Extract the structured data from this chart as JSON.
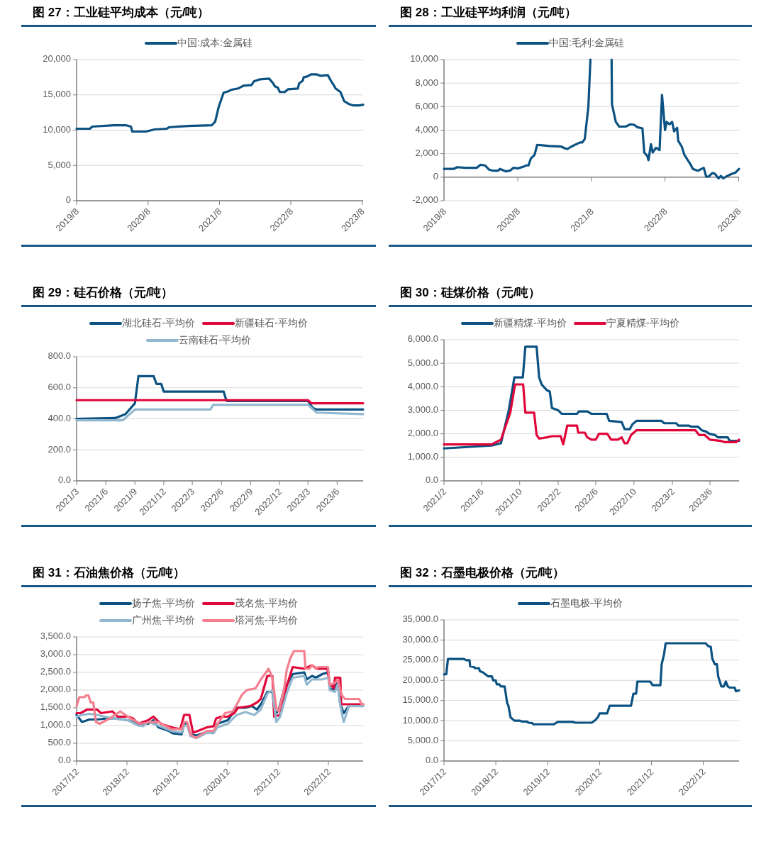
{
  "chart_data": [
    {
      "type": "line",
      "title": "图 27：工业硅平均成本（元/吨）",
      "legend": "top",
      "grid": "y",
      "xlim": [
        "2019-08-01",
        "2023-08-06"
      ],
      "xticks": [
        {
          "value": "2019-08",
          "label": "2019/8"
        },
        {
          "value": "2020-08",
          "label": "2020/8"
        },
        {
          "value": "2021-08",
          "label": "2021/8"
        },
        {
          "value": "2022-08",
          "label": "2022/8"
        },
        {
          "value": "2023-08",
          "label": "2023/8"
        }
      ],
      "ylim": [
        0,
        20000
      ],
      "yticks": [
        {
          "value": 0,
          "label": "0"
        },
        {
          "value": 5000,
          "label": "5,000"
        },
        {
          "value": 10000,
          "label": "10,000"
        },
        {
          "value": 15000,
          "label": "15,000"
        },
        {
          "value": 20000,
          "label": "20,000"
        }
      ],
      "series": [
        {
          "name": "中国:成本:金属硅",
          "color": "#0b5282",
          "x": [
            "2019-08-01",
            "2019-10-08",
            "2019-10-20",
            "2020-02-08",
            "2020-04-08",
            "2020-05-05",
            "2020-05-12",
            "2020-07-20",
            "2020-09-03",
            "2020-11-03",
            "2020-11-15",
            "2021-02-22",
            "2021-06-22",
            "2021-07-10",
            "2021-07-28",
            "2021-08-22",
            "2021-09-15",
            "2021-09-28",
            "2021-11-04",
            "2021-12-01",
            "2022-01-12",
            "2022-01-24",
            "2022-02-24",
            "2022-04-12",
            "2022-05-01",
            "2022-05-12",
            "2022-05-27",
            "2022-06-06",
            "2022-07-01",
            "2022-07-18",
            "2022-09-06",
            "2022-09-12",
            "2022-10-01",
            "2022-10-06",
            "2022-10-24",
            "2022-11-12",
            "2022-12-12",
            "2023-01-01",
            "2023-02-06",
            "2023-02-24",
            "2023-03-06",
            "2023-03-18",
            "2023-04-12",
            "2023-05-01",
            "2023-05-25",
            "2023-06-18",
            "2023-07-18",
            "2023-08-06"
          ],
          "values": [
            10200,
            10200,
            10500,
            10700,
            10700,
            10500,
            9800,
            9800,
            10100,
            10200,
            10400,
            10600,
            10700,
            11200,
            13300,
            15300,
            15500,
            15700,
            15900,
            16300,
            16400,
            16900,
            17200,
            17300,
            16700,
            16200,
            16000,
            15400,
            15400,
            15800,
            15900,
            16600,
            17000,
            17500,
            17600,
            17900,
            17900,
            17700,
            17800,
            16900,
            16500,
            15900,
            15400,
            14100,
            13700,
            13500,
            13500,
            13600
          ]
        }
      ]
    },
    {
      "type": "line",
      "title": "图 28：工业硅平均利润（元/吨）",
      "legend": "top",
      "grid": "y",
      "xlim": [
        "2019-08-01",
        "2023-08-03"
      ],
      "xticks": [
        {
          "value": "2019-08",
          "label": "2019/8"
        },
        {
          "value": "2020-08",
          "label": "2020/8"
        },
        {
          "value": "2021-08",
          "label": "2021/8"
        },
        {
          "value": "2022-08",
          "label": "2022/8"
        },
        {
          "value": "2023-08",
          "label": "2023/8"
        }
      ],
      "ylim": [
        -2000,
        10000
      ],
      "yticks": [
        {
          "value": -2000,
          "label": "-2,000"
        },
        {
          "value": 0,
          "label": "0"
        },
        {
          "value": 2000,
          "label": "2,000"
        },
        {
          "value": 4000,
          "label": "4,000"
        },
        {
          "value": 6000,
          "label": "6,000"
        },
        {
          "value": 8000,
          "label": "8,000"
        },
        {
          "value": 10000,
          "label": "10,000"
        }
      ],
      "series": [
        {
          "name": "中国:毛利:金属硅",
          "color": "#0b5282",
          "x": [
            "2019-08-01",
            "2019-09-17",
            "2019-10-05",
            "2019-11-17",
            "2020-01-11",
            "2020-01-28",
            "2020-02-21",
            "2020-03-11",
            "2020-03-30",
            "2020-04-26",
            "2020-05-05",
            "2020-06-01",
            "2020-06-23",
            "2020-07-11",
            "2020-08-01",
            "2020-08-30",
            "2020-09-12",
            "2020-09-23",
            "2020-10-05",
            "2020-10-23",
            "2020-11-05",
            "2021-01-05",
            "2021-03-05",
            "2021-03-23",
            "2021-04-05",
            "2021-04-23",
            "2021-06-05",
            "2021-06-17",
            "2021-06-29",
            "2021-07-17",
            "2021-07-27",
            null,
            "2021-11-09",
            "2021-11-11",
            "2021-11-30",
            "2021-12-17",
            "2022-01-17",
            "2022-02-11",
            "2022-03-01",
            "2022-03-17",
            "2022-04-11",
            "2022-04-20",
            "2022-05-05",
            "2022-05-11",
            "2022-05-23",
            "2022-06-01",
            "2022-06-17",
            "2022-07-05",
            "2022-07-17",
            "2022-08-01",
            "2022-08-09",
            "2022-08-23",
            "2022-09-05",
            "2022-09-15",
            "2022-09-30",
            "2022-10-05",
            "2022-10-23",
            "2022-11-05",
            "2022-12-05",
            "2022-12-17",
            "2023-01-11",
            "2023-02-09",
            "2023-02-21",
            "2023-03-05",
            "2023-03-23",
            "2023-04-05",
            "2023-04-23",
            "2023-05-05",
            "2023-05-17",
            "2023-06-05",
            "2023-06-23",
            "2023-07-17",
            "2023-08-03"
          ],
          "values": [
            700,
            700,
            850,
            800,
            800,
            1050,
            1000,
            650,
            550,
            550,
            700,
            500,
            550,
            800,
            750,
            900,
            1000,
            1000,
            1600,
            1900,
            2750,
            2650,
            2600,
            2450,
            2400,
            2600,
            2950,
            2950,
            3250,
            6000,
            10000,
            null,
            10000,
            6200,
            4700,
            4300,
            4300,
            4500,
            4450,
            4250,
            4150,
            2100,
            1800,
            1450,
            2800,
            2100,
            2500,
            2300,
            7000,
            4000,
            4700,
            4500,
            4700,
            3900,
            4200,
            3100,
            2600,
            1900,
            1100,
            700,
            550,
            800,
            50,
            50,
            350,
            300,
            -100,
            100,
            -100,
            100,
            250,
            400,
            700
          ]
        }
      ]
    },
    {
      "type": "line",
      "title": "图 29：硅石价格（元/吨）",
      "legend": "top",
      "grid": "y",
      "xlim": [
        "2021-03-01",
        "2023-08-22"
      ],
      "xticks": [
        {
          "value": "2021-03",
          "label": "2021/3"
        },
        {
          "value": "2021-06",
          "label": "2021/6"
        },
        {
          "value": "2021-09",
          "label": "2021/9"
        },
        {
          "value": "2021-12",
          "label": "2021/12"
        },
        {
          "value": "2022-03",
          "label": "2022/3"
        },
        {
          "value": "2022-06",
          "label": "2022/6"
        },
        {
          "value": "2022-09",
          "label": "2022/9"
        },
        {
          "value": "2022-12",
          "label": "2022/12"
        },
        {
          "value": "2023-03",
          "label": "2023/3"
        },
        {
          "value": "2023-06",
          "label": "2023/6"
        }
      ],
      "ylim": [
        0,
        800
      ],
      "yticks": [
        {
          "value": 0,
          "label": "0.0"
        },
        {
          "value": 200,
          "label": "200.0"
        },
        {
          "value": 400,
          "label": "400.0"
        },
        {
          "value": 600,
          "label": "600.0"
        },
        {
          "value": 800,
          "label": "800.0"
        }
      ],
      "series": [
        {
          "name": "湖北硅石-平均价",
          "color": "#0b5282",
          "x": [
            "2021-03-01",
            "2021-07-01",
            "2021-08-02",
            "2021-09-01",
            "2021-09-12",
            "2021-10-30",
            "2021-11-08",
            "2021-11-23",
            "2021-12-01",
            "2022-06-08",
            "2022-06-17",
            "2023-03-01",
            "2023-03-16",
            "2023-03-28",
            "2023-08-22"
          ],
          "values": [
            400,
            405,
            430,
            500,
            675,
            675,
            625,
            625,
            575,
            575,
            515,
            515,
            470,
            460,
            460
          ]
        },
        {
          "name": "新疆硅石-平均价",
          "color": "#e0063a",
          "x": [
            "2021-03-01",
            "2023-03-01",
            "2023-03-12",
            "2023-08-22"
          ],
          "values": [
            520,
            520,
            500,
            500
          ]
        },
        {
          "name": "云南硅石-平均价",
          "color": "#92b8cf",
          "x": [
            "2021-03-01",
            "2021-07-24",
            "2021-09-01",
            "2022-04-27",
            "2022-05-06",
            "2023-03-01",
            "2023-03-28",
            "2023-08-22"
          ],
          "values": [
            390,
            390,
            460,
            460,
            490,
            490,
            440,
            430
          ]
        }
      ]
    },
    {
      "type": "line",
      "title": "图 30：硅煤价格（元/吨）",
      "legend": "top",
      "grid": "y",
      "xlim": [
        "2021-02-01",
        "2023-09-02"
      ],
      "xticks": [
        {
          "value": "2021-02",
          "label": "2021/2"
        },
        {
          "value": "2021-06",
          "label": "2021/6"
        },
        {
          "value": "2021-10",
          "label": "2021/10"
        },
        {
          "value": "2022-02",
          "label": "2022/2"
        },
        {
          "value": "2022-06",
          "label": "2022/6"
        },
        {
          "value": "2022-10",
          "label": "2022/10"
        },
        {
          "value": "2023-02",
          "label": "2023/2"
        },
        {
          "value": "2023-06",
          "label": "2023/6"
        }
      ],
      "ylim": [
        0,
        6000
      ],
      "yticks": [
        {
          "value": 0,
          "label": "0.0"
        },
        {
          "value": 1000,
          "label": "1,000.0"
        },
        {
          "value": 2000,
          "label": "2,000.0"
        },
        {
          "value": 3000,
          "label": "3,000.0"
        },
        {
          "value": 4000,
          "label": "4,000.0"
        },
        {
          "value": 5000,
          "label": "5,000.0"
        },
        {
          "value": 6000,
          "label": "6,000.0"
        }
      ],
      "series": [
        {
          "name": "新疆精煤-平均价",
          "color": "#0b5282",
          "x": [
            "2021-02-01",
            "2021-07-03",
            "2021-08-02",
            "2021-08-27",
            "2021-09-14",
            "2021-10-11",
            "2021-10-19",
            "2021-11-24",
            "2021-12-02",
            "2021-12-10",
            "2021-12-27",
            "2022-01-05",
            "2022-01-12",
            "2022-02-01",
            "2022-02-12",
            "2022-04-02",
            "2022-04-08",
            "2022-05-05",
            "2022-05-18",
            "2022-07-06",
            "2022-07-14",
            "2022-08-23",
            "2022-09-01",
            "2022-09-18",
            "2022-09-26",
            "2022-10-09",
            "2022-12-28",
            "2023-01-06",
            "2023-02-13",
            "2023-02-20",
            "2023-03-25",
            "2023-04-03",
            "2023-04-24",
            "2023-05-06",
            "2023-05-19",
            "2023-05-30",
            "2023-06-17",
            "2023-06-26",
            "2023-07-28",
            "2023-08-03",
            "2023-09-02"
          ],
          "values": [
            1380,
            1500,
            1600,
            3000,
            4400,
            4400,
            5700,
            5700,
            4400,
            4100,
            3850,
            3800,
            3100,
            3000,
            2850,
            2850,
            2950,
            2950,
            2850,
            2850,
            2550,
            2500,
            2200,
            2200,
            2400,
            2550,
            2550,
            2450,
            2450,
            2350,
            2350,
            2300,
            2300,
            2150,
            2100,
            2000,
            1950,
            1850,
            1850,
            1700,
            1700
          ]
        },
        {
          "name": "宁夏精煤-平均价",
          "color": "#e0063a",
          "x": [
            "2021-02-01",
            "2021-07-03",
            "2021-08-02",
            "2021-09-01",
            "2021-09-16",
            "2021-10-12",
            "2021-10-19",
            "2021-11-16",
            "2021-11-24",
            "2021-12-02",
            "2021-12-27",
            "2022-01-12",
            "2022-02-09",
            "2022-02-17",
            "2022-03-02",
            "2022-04-02",
            "2022-04-06",
            "2022-04-27",
            "2022-05-05",
            "2022-05-18",
            "2022-06-01",
            "2022-06-11",
            "2022-07-08",
            "2022-07-20",
            "2022-08-11",
            "2022-08-23",
            "2022-09-01",
            "2022-09-10",
            "2022-09-22",
            "2022-10-09",
            "2023-04-16",
            "2023-04-27",
            "2023-05-15",
            "2023-06-01",
            "2023-07-05",
            "2023-07-17",
            "2023-08-24",
            "2023-09-02"
          ],
          "values": [
            1550,
            1550,
            1750,
            2900,
            4100,
            4100,
            2900,
            2900,
            1950,
            1800,
            1850,
            1900,
            1900,
            1550,
            2350,
            2350,
            2050,
            2050,
            1850,
            1750,
            1750,
            2000,
            2000,
            1750,
            1750,
            1850,
            1600,
            1600,
            1950,
            2150,
            2150,
            1950,
            1950,
            1750,
            1700,
            1650,
            1650,
            1750
          ]
        }
      ]
    },
    {
      "type": "line",
      "title": "图 31：石油焦价格（元/吨）",
      "legend": "top",
      "grid": "y",
      "xlim": [
        "2017-12-01",
        "2023-08-10"
      ],
      "xticks": [
        {
          "value": "2017-12",
          "label": "2017/12"
        },
        {
          "value": "2018-12",
          "label": "2018/12"
        },
        {
          "value": "2019-12",
          "label": "2019/12"
        },
        {
          "value": "2020-12",
          "label": "2020/12"
        },
        {
          "value": "2021-12",
          "label": "2021/12"
        },
        {
          "value": "2022-12",
          "label": "2022/12"
        }
      ],
      "ylim": [
        0,
        3500
      ],
      "yticks": [
        {
          "value": 0,
          "label": "0.0"
        },
        {
          "value": 500,
          "label": "500.0"
        },
        {
          "value": 1000,
          "label": "1,000.0"
        },
        {
          "value": 1500,
          "label": "1,500.0"
        },
        {
          "value": 2000,
          "label": "2,000.0"
        },
        {
          "value": 2500,
          "label": "2,500.0"
        },
        {
          "value": 3000,
          "label": "3,000.0"
        },
        {
          "value": 3500,
          "label": "3,500.0"
        }
      ],
      "series": [
        {
          "name": "扬子焦-平均价",
          "color": "#0b5282",
          "x": [
            "2017-12-01",
            "2018-01-09",
            "2018-03-04",
            "2018-04-29",
            "2018-07-12",
            "2018-09-07",
            "2018-12-08",
            "2019-02-21",
            "2019-05-04",
            "2019-06-10",
            "2019-07-17",
            "2019-09-30",
            "2019-10-28",
            "2020-01-01",
            "2020-01-20",
            "2020-02-11",
            "2020-03-06",
            "2020-04-21",
            "2020-06-16",
            "2020-08-20",
            "2020-09-17",
            "2020-12-01",
            "2021-02-04",
            "2021-04-08",
            "2021-05-24",
            "2021-07-01",
            "2021-08-07",
            "2021-09-14",
            "2021-10-21",
            "2021-11-09",
            "2021-12-06",
            "2022-01-13",
            "2022-03-17",
            "2022-06-09",
            "2022-06-27",
            "2022-08-04",
            "2022-09-01",
            "2022-10-17",
            "2022-12-01",
            "2022-12-11",
            "2023-01-09",
            "2023-02-06",
            "2023-02-25",
            "2023-03-22",
            "2023-04-29",
            "2023-08-10"
          ],
          "values": [
            1300,
            1100,
            1170,
            1170,
            1200,
            1200,
            1150,
            1050,
            1050,
            1150,
            950,
            850,
            780,
            750,
            1050,
            1050,
            750,
            720,
            800,
            820,
            1050,
            1150,
            1500,
            1500,
            1550,
            1450,
            1650,
            1950,
            1950,
            1300,
            1450,
            2000,
            2450,
            2500,
            2300,
            2400,
            2350,
            2450,
            2500,
            2050,
            2000,
            2250,
            1600,
            1350,
            1550,
            1550
          ]
        },
        {
          "name": "茂名焦-平均价",
          "color": "#e0063a",
          "x": [
            "2017-12-01",
            "2017-12-30",
            "2018-02-15",
            "2018-04-29",
            "2018-05-27",
            "2018-08-18",
            "2018-09-25",
            "2018-12-08",
            "2019-01-15",
            "2019-02-21",
            "2019-05-04",
            "2019-06-10",
            "2019-08-05",
            "2019-10-19",
            "2019-12-23",
            "2020-01-20",
            "2020-02-27",
            "2020-03-24",
            "2020-04-30",
            "2020-07-04",
            "2020-08-20",
            "2020-09-08",
            "2020-10-15",
            "2020-12-01",
            "2021-01-17",
            "2021-02-13",
            "2021-05-15",
            "2021-07-01",
            "2021-07-29",
            "2021-09-14",
            "2021-10-21",
            "2021-11-03",
            "2021-12-16",
            "2022-02-01",
            "2022-03-17",
            "2022-06-09",
            "2022-08-04",
            "2022-09-10",
            "2022-11-24",
            "2022-12-08",
            "2023-01-09",
            "2023-01-18",
            "2023-02-25",
            "2023-03-04",
            "2023-05-08",
            "2023-08-10"
          ],
          "values": [
            1350,
            1350,
            1450,
            1450,
            1350,
            1400,
            1250,
            1250,
            1200,
            1050,
            1150,
            1250,
            1050,
            950,
            900,
            1300,
            1300,
            800,
            850,
            950,
            980,
            1200,
            1250,
            1250,
            1350,
            1500,
            1550,
            1650,
            1750,
            2400,
            2400,
            1250,
            1300,
            2100,
            2650,
            2600,
            2700,
            2600,
            2600,
            2200,
            2050,
            2350,
            2350,
            1600,
            1600,
            1600
          ]
        },
        {
          "name": "广州焦-平均价",
          "color": "#92b8cf",
          "x": [
            "2017-12-01",
            "2018-01-09",
            "2018-03-04",
            "2018-04-29",
            "2018-08-18",
            "2018-12-08",
            "2019-02-21",
            "2019-03-28",
            "2019-05-04",
            "2019-07-17",
            "2019-10-19",
            "2020-01-01",
            "2020-01-20",
            "2020-02-11",
            "2020-03-06",
            "2020-04-21",
            "2020-07-04",
            "2020-08-20",
            "2020-09-17",
            "2020-12-01",
            "2021-02-04",
            "2021-04-08",
            "2021-06-12",
            "2021-07-29",
            "2021-09-14",
            "2021-10-21",
            "2021-11-18",
            "2021-12-16",
            "2022-02-01",
            "2022-03-17",
            "2022-06-09",
            "2022-06-27",
            "2022-08-04",
            "2022-10-17",
            "2022-12-01",
            "2022-12-11",
            "2023-01-18",
            "2023-02-06",
            "2023-02-28",
            "2023-03-22",
            "2023-04-29",
            "2023-08-10"
          ],
          "values": [
            1250,
            1300,
            1330,
            1300,
            1200,
            1150,
            1000,
            980,
            1100,
            1000,
            850,
            800,
            1000,
            1000,
            700,
            650,
            800,
            780,
            950,
            1050,
            1300,
            1380,
            1300,
            1450,
            1900,
            2000,
            1100,
            1250,
            1900,
            2350,
            2400,
            2150,
            2300,
            2300,
            2350,
            2000,
            1950,
            2150,
            1500,
            1100,
            1550,
            1550
          ]
        },
        {
          "name": "塔河焦-平均价",
          "color": "#f57f8f",
          "x": [
            "2017-12-01",
            "2017-12-21",
            "2018-01-28",
            "2018-02-06",
            "2018-02-25",
            "2018-03-13",
            "2018-04-01",
            "2018-04-20",
            "2018-05-17",
            "2018-07-30",
            "2018-10-13",
            "2018-12-27",
            "2019-03-10",
            "2019-05-22",
            "2019-07-17",
            "2019-10-19",
            "2020-01-01",
            "2020-01-20",
            "2020-02-11",
            "2020-03-06",
            "2020-04-12",
            "2020-07-04",
            "2020-08-20",
            "2020-09-27",
            "2020-11-12",
            "2021-01-07",
            "2021-02-13",
            "2021-03-11",
            "2021-04-18",
            "2021-06-21",
            "2021-07-29",
            "2021-09-23",
            "2021-10-21",
            "2021-11-18",
            "2021-12-06",
            "2022-01-13",
            "2022-02-01",
            "2022-02-28",
            "2022-03-26",
            "2022-06-09",
            "2022-06-18",
            "2022-07-16",
            "2022-08-04",
            "2022-09-01",
            "2022-09-19",
            "2022-11-28",
            "2022-12-11",
            "2023-01-18",
            "2023-02-06",
            "2023-03-09",
            "2023-04-01",
            "2023-07-12",
            "2023-07-30",
            "2023-08-10"
          ],
          "values": [
            1550,
            1800,
            1800,
            1850,
            1850,
            1650,
            1650,
            1100,
            1050,
            1200,
            1400,
            1200,
            1050,
            1100,
            1100,
            900,
            900,
            1100,
            1100,
            750,
            650,
            850,
            850,
            1100,
            1350,
            1400,
            1650,
            1850,
            2000,
            2050,
            2300,
            2600,
            2350,
            1500,
            1400,
            2000,
            2550,
            2900,
            3100,
            3100,
            2600,
            2600,
            2700,
            2600,
            2650,
            2650,
            2150,
            2200,
            2300,
            1850,
            1750,
            1750,
            1600,
            1600
          ]
        }
      ]
    },
    {
      "type": "line",
      "title": "图 32：石墨电极价格（元/吨）",
      "legend": "top",
      "grid": "y",
      "xlim": [
        "2017-12-01",
        "2023-08-10"
      ],
      "xticks": [
        {
          "value": "2017-12",
          "label": "2017/12"
        },
        {
          "value": "2018-12",
          "label": "2018/12"
        },
        {
          "value": "2019-12",
          "label": "2019/12"
        },
        {
          "value": "2020-12",
          "label": "2020/12"
        },
        {
          "value": "2021-12",
          "label": "2021/12"
        },
        {
          "value": "2022-12",
          "label": "2022/12"
        }
      ],
      "ylim": [
        0,
        35000
      ],
      "yticks": [
        {
          "value": 0,
          "label": "0.0"
        },
        {
          "value": 5000,
          "label": "5,000.0"
        },
        {
          "value": 10000,
          "label": "10,000.0"
        },
        {
          "value": 15000,
          "label": "15,000.0"
        },
        {
          "value": 20000,
          "label": "20,000.0"
        },
        {
          "value": 25000,
          "label": "25,000.0"
        },
        {
          "value": 30000,
          "label": "30,000.0"
        },
        {
          "value": 35000,
          "label": "35,000.0"
        }
      ],
      "series": [
        {
          "name": "石墨电极-平均价",
          "color": "#0b5282",
          "x": [
            "2017-12-01",
            "2017-12-17",
            "2017-12-29",
            "2018-04-20",
            "2018-05-07",
            "2018-05-30",
            "2018-06-03",
            "2018-06-30",
            "2018-07-09",
            "2018-08-05",
            "2018-08-10",
            "2018-09-01",
            "2018-09-19",
            "2018-10-07",
            "2018-11-03",
            "2018-11-12",
            "2018-11-30",
            "2018-12-08",
            "2018-12-26",
            "2019-01-05",
            "2019-02-01",
            "2019-02-10",
            "2019-02-19",
            "2019-02-27",
            "2019-03-15",
            "2019-04-11",
            "2019-05-17",
            "2019-06-04",
            "2019-07-09",
            "2019-07-18",
            "2019-08-15",
            "2019-08-23",
            "2020-01-14",
            "2020-02-10",
            "2020-05-26",
            "2020-06-13",
            "2020-10-07",
            "2020-11-03",
            "2020-11-21",
            "2020-12-01",
            "2021-01-23",
            "2021-02-10",
            "2021-07-10",
            "2021-07-27",
            "2021-08-15",
            "2021-08-24",
            "2021-11-22",
            "2021-12-09",
            "2022-02-02",
            "2022-02-11",
            "2022-02-28",
            "2022-03-11",
            "2022-12-18",
            "2023-01-05",
            "2023-01-23",
            "2023-02-02",
            "2023-02-20",
            "2023-03-07",
            "2023-03-16",
            "2023-04-07",
            "2023-04-25",
            "2023-05-09",
            "2023-05-23",
            "2023-06-05",
            "2023-07-10",
            "2023-07-19",
            "2023-08-10"
          ],
          "values": [
            21500,
            21500,
            25300,
            25300,
            25000,
            25000,
            23500,
            23300,
            23000,
            23000,
            22300,
            22000,
            21500,
            21000,
            21000,
            20000,
            20000,
            19000,
            19000,
            18500,
            18500,
            16500,
            14300,
            13800,
            10800,
            10000,
            10000,
            9800,
            9800,
            9500,
            9400,
            9100,
            9100,
            9700,
            9700,
            9500,
            9500,
            10200,
            11000,
            11800,
            11800,
            13700,
            13700,
            16700,
            16700,
            19700,
            19700,
            18800,
            18800,
            24000,
            26500,
            29200,
            29200,
            28500,
            28300,
            25500,
            24000,
            24000,
            21000,
            18500,
            18500,
            19700,
            18500,
            18200,
            18200,
            17300,
            17500
          ]
        }
      ]
    }
  ]
}
